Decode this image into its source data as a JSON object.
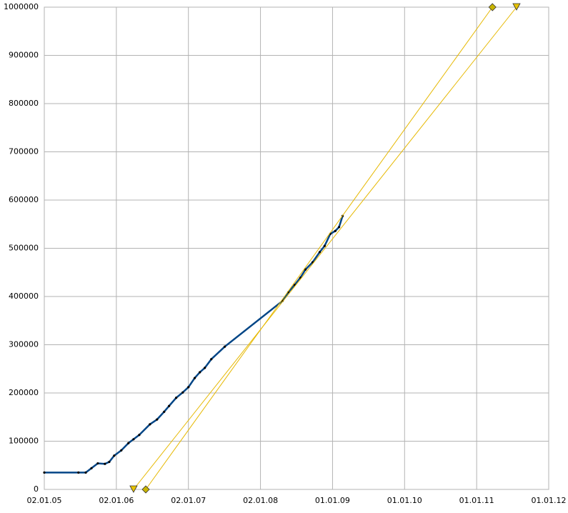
{
  "chart_data": {
    "type": "line",
    "xlim": [
      "2005-01-02",
      "2012-01-01"
    ],
    "xticks": [
      {
        "value": "2005-01-02",
        "label": "02.01.05"
      },
      {
        "value": "2006-01-02",
        "label": "02.01.06"
      },
      {
        "value": "2007-01-02",
        "label": "02.01.07"
      },
      {
        "value": "2008-01-02",
        "label": "02.01.08"
      },
      {
        "value": "2009-01-01",
        "label": "01.01.09"
      },
      {
        "value": "2010-01-01",
        "label": "01.01.10"
      },
      {
        "value": "2011-01-01",
        "label": "01.01.11"
      },
      {
        "value": "2012-01-01",
        "label": "01.01.12"
      }
    ],
    "ylim": [
      0,
      1000000
    ],
    "yticks": [
      0,
      100000,
      200000,
      300000,
      400000,
      500000,
      600000,
      700000,
      800000,
      900000,
      1000000
    ],
    "grid": true,
    "series": [
      {
        "color": "#004586",
        "marker": "dot",
        "x": [
          "2005-01-02",
          "2005-06-24",
          "2005-07-31",
          "2005-08-29",
          "2005-09-30",
          "2005-11-05",
          "2005-11-27",
          "2005-12-22",
          "2006-01-27",
          "2006-03-04",
          "2006-03-30",
          "2006-04-28",
          "2006-06-21",
          "2006-07-27",
          "2006-09-01",
          "2006-09-26",
          "2006-11-01",
          "2006-12-04",
          "2007-01-02",
          "2007-02-03",
          "2007-03-01",
          "2007-03-26",
          "2007-04-28",
          "2007-07-05",
          "2008-04-23",
          "2008-05-22",
          "2008-06-23",
          "2008-07-22",
          "2008-08-17",
          "2008-09-22",
          "2008-10-28",
          "2008-11-22",
          "2008-12-21",
          "2009-01-15",
          "2009-02-03",
          "2009-02-21"
        ],
        "values": [
          35000,
          35000,
          35000,
          44000,
          54000,
          53000,
          57000,
          70000,
          81000,
          96000,
          104000,
          113000,
          135000,
          145000,
          161000,
          173000,
          190000,
          201000,
          212000,
          231000,
          243000,
          252000,
          270000,
          296000,
          391000,
          409000,
          424000,
          439000,
          456000,
          471000,
          492000,
          505000,
          530000,
          536000,
          544000,
          567000
        ]
      },
      {
        "color": "#e6b800",
        "marker": "triangle",
        "x": [
          "2006-03-30",
          "2011-07-22"
        ],
        "values": [
          0,
          1000000
        ]
      },
      {
        "color": "#e6b800",
        "marker": "diamond",
        "x": [
          "2006-05-31",
          "2011-03-22"
        ],
        "values": [
          0,
          1000000
        ]
      }
    ]
  }
}
